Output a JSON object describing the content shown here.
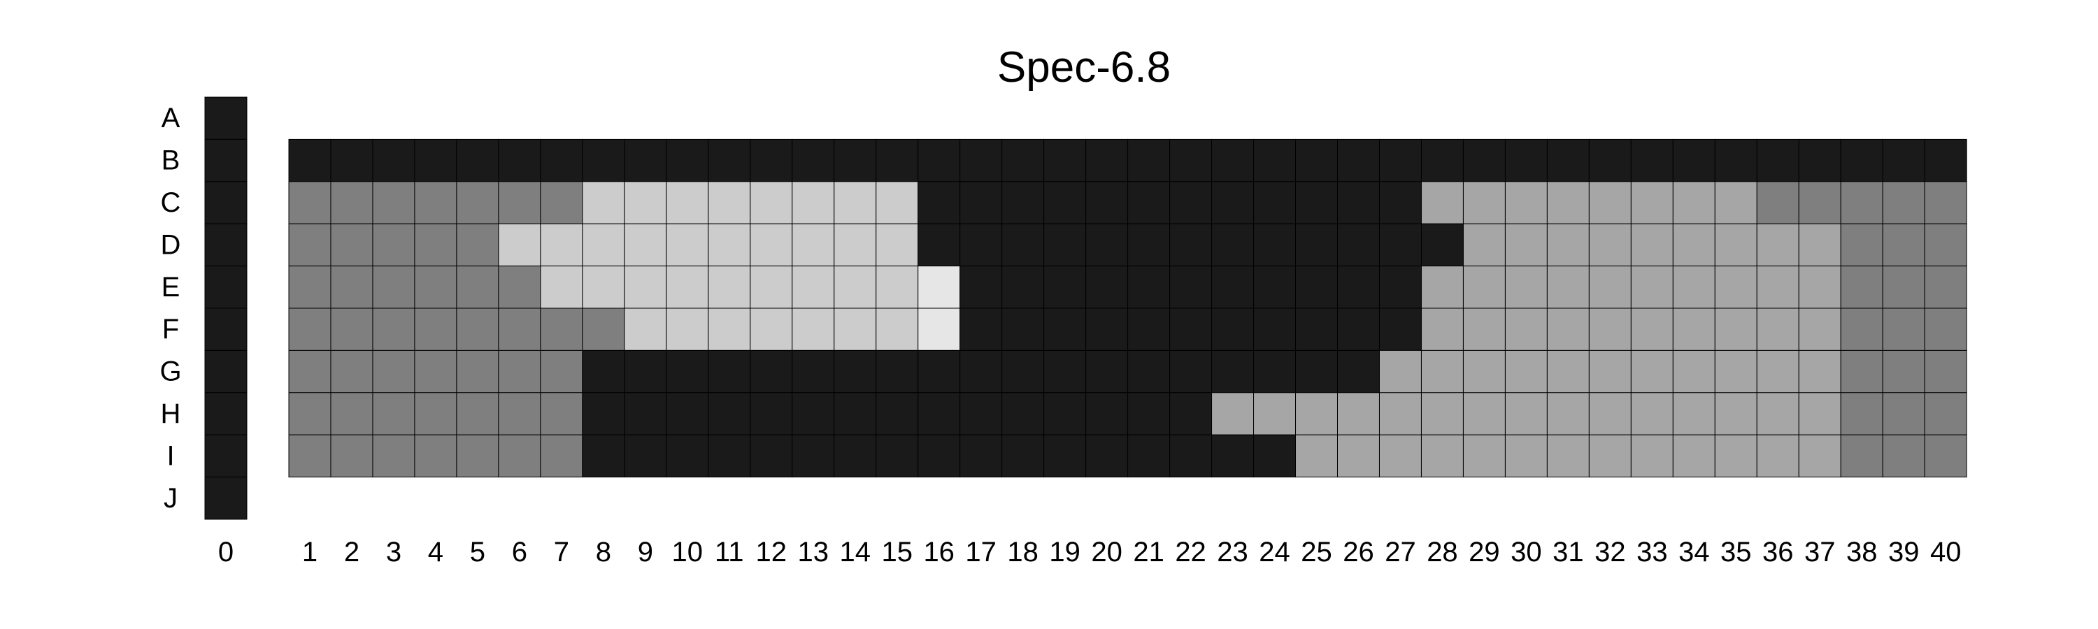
{
  "chart_data": {
    "type": "heatmap",
    "title": "Spec-6.8",
    "xlabel": "",
    "ylabel": "",
    "grid": true,
    "legend": "none",
    "row_labels": [
      "A",
      "B",
      "C",
      "D",
      "E",
      "F",
      "G",
      "H",
      "I",
      "J"
    ],
    "column_0": {
      "label": "0",
      "rows": [
        "A",
        "B",
        "C",
        "D",
        "E",
        "F",
        "G",
        "H",
        "I",
        "J"
      ],
      "values": [
        0,
        0,
        0,
        0,
        0,
        0,
        0,
        0,
        0,
        0
      ]
    },
    "x_labels": [
      "1",
      "2",
      "3",
      "4",
      "5",
      "6",
      "7",
      "8",
      "9",
      "10",
      "11",
      "12",
      "13",
      "14",
      "15",
      "16",
      "17",
      "18",
      "19",
      "20",
      "21",
      "22",
      "23",
      "24",
      "25",
      "26",
      "27",
      "28",
      "29",
      "30",
      "31",
      "32",
      "33",
      "34",
      "35",
      "36",
      "37",
      "38",
      "39",
      "40"
    ],
    "rows": [
      "B",
      "C",
      "D",
      "E",
      "F",
      "G",
      "H",
      "I"
    ],
    "value_levels": [
      0,
      1,
      2,
      3,
      4
    ],
    "level_colors": [
      "#1a1a1a",
      "#7f7f7f",
      "#a6a6a6",
      "#cccccc",
      "#e6e6e6"
    ],
    "values": [
      [
        0,
        0,
        0,
        0,
        0,
        0,
        0,
        0,
        0,
        0,
        0,
        0,
        0,
        0,
        0,
        0,
        0,
        0,
        0,
        0,
        0,
        0,
        0,
        0,
        0,
        0,
        0,
        0,
        0,
        0,
        0,
        0,
        0,
        0,
        0,
        0,
        0,
        0,
        0,
        0
      ],
      [
        1,
        1,
        1,
        1,
        1,
        1,
        1,
        3,
        3,
        3,
        3,
        3,
        3,
        3,
        3,
        0,
        0,
        0,
        0,
        0,
        0,
        0,
        0,
        0,
        0,
        0,
        0,
        2,
        2,
        2,
        2,
        2,
        2,
        2,
        2,
        1,
        1,
        1,
        1,
        1
      ],
      [
        1,
        1,
        1,
        1,
        1,
        3,
        3,
        3,
        3,
        3,
        3,
        3,
        3,
        3,
        3,
        0,
        0,
        0,
        0,
        0,
        0,
        0,
        0,
        0,
        0,
        0,
        0,
        0,
        2,
        2,
        2,
        2,
        2,
        2,
        2,
        2,
        2,
        1,
        1,
        1
      ],
      [
        1,
        1,
        1,
        1,
        1,
        1,
        3,
        3,
        3,
        3,
        3,
        3,
        3,
        3,
        3,
        4,
        0,
        0,
        0,
        0,
        0,
        0,
        0,
        0,
        0,
        0,
        0,
        2,
        2,
        2,
        2,
        2,
        2,
        2,
        2,
        2,
        2,
        1,
        1,
        1
      ],
      [
        1,
        1,
        1,
        1,
        1,
        1,
        1,
        1,
        3,
        3,
        3,
        3,
        3,
        3,
        3,
        4,
        0,
        0,
        0,
        0,
        0,
        0,
        0,
        0,
        0,
        0,
        0,
        2,
        2,
        2,
        2,
        2,
        2,
        2,
        2,
        2,
        2,
        1,
        1,
        1
      ],
      [
        1,
        1,
        1,
        1,
        1,
        1,
        1,
        0,
        0,
        0,
        0,
        0,
        0,
        0,
        0,
        0,
        0,
        0,
        0,
        0,
        0,
        0,
        0,
        0,
        0,
        0,
        2,
        2,
        2,
        2,
        2,
        2,
        2,
        2,
        2,
        2,
        2,
        1,
        1,
        1
      ],
      [
        1,
        1,
        1,
        1,
        1,
        1,
        1,
        0,
        0,
        0,
        0,
        0,
        0,
        0,
        0,
        0,
        0,
        0,
        0,
        0,
        0,
        0,
        2,
        2,
        2,
        2,
        2,
        2,
        2,
        2,
        2,
        2,
        2,
        2,
        2,
        2,
        2,
        1,
        1,
        1
      ],
      [
        1,
        1,
        1,
        1,
        1,
        1,
        1,
        0,
        0,
        0,
        0,
        0,
        0,
        0,
        0,
        0,
        0,
        0,
        0,
        0,
        0,
        0,
        0,
        0,
        2,
        2,
        2,
        2,
        2,
        2,
        2,
        2,
        2,
        2,
        2,
        2,
        2,
        1,
        1,
        1
      ]
    ]
  }
}
